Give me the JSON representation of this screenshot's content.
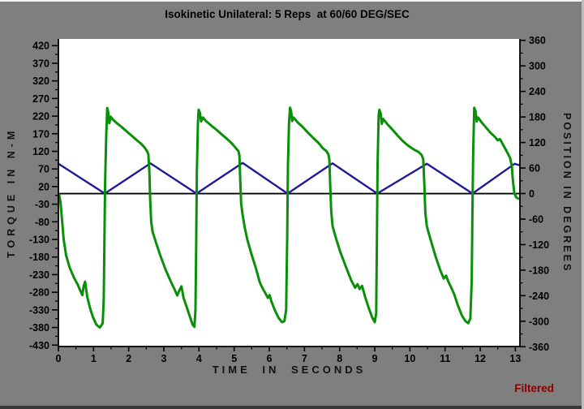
{
  "window": {
    "background_color": "#7f7f7f"
  },
  "footer": {
    "filtered_label": "Filtered",
    "filtered_color": "#8b0000"
  },
  "chart_data": {
    "type": "line",
    "title": "Isokinetic Unilateral: 5 Reps  at 60/60 DEG/SEC",
    "grid": false,
    "legend": "none",
    "zero_line": true,
    "plot_background": "#ffffff",
    "x_axis": {
      "label": "TIME IN SECONDS",
      "range": [
        0,
        13.13
      ],
      "major_ticks": [
        0,
        1,
        2,
        3,
        4,
        5,
        6,
        7,
        8,
        9,
        10,
        11,
        12,
        13
      ],
      "minor_step": 0.5
    },
    "y_axis_left": {
      "label": "TORQUE IN N-M",
      "range": [
        -434,
        439
      ],
      "major_ticks": [
        420,
        370,
        320,
        270,
        220,
        170,
        120,
        70,
        20,
        -30,
        -80,
        -130,
        -180,
        -230,
        -280,
        -330,
        -380,
        -430
      ],
      "minor_step": 25
    },
    "y_axis_right": {
      "label": "POSITION IN DEGREES",
      "range": [
        -359.5,
        363.3
      ],
      "major_ticks": [
        360,
        300,
        240,
        180,
        120,
        60,
        0,
        -60,
        -120,
        -180,
        -240,
        -300,
        -360
      ],
      "minor_step": 30
    },
    "series": [
      {
        "name": "position",
        "axis": "right",
        "color": "#1c1c99",
        "stroke_width": 2.4,
        "points": [
          [
            0,
            70
          ],
          [
            1.32,
            0
          ],
          [
            2.62,
            71
          ],
          [
            3.93,
            0
          ],
          [
            5.24,
            72
          ],
          [
            6.52,
            0
          ],
          [
            7.8,
            71
          ],
          [
            9.07,
            0
          ],
          [
            10.48,
            70
          ],
          [
            11.78,
            0
          ],
          [
            12.98,
            70
          ],
          [
            13.1,
            67
          ]
        ]
      },
      {
        "name": "torque",
        "axis": "left",
        "color": "#089008",
        "stroke_width": 3,
        "points": [
          [
            0.02,
            -3
          ],
          [
            0.06,
            -25
          ],
          [
            0.1,
            -70
          ],
          [
            0.15,
            -130
          ],
          [
            0.22,
            -175
          ],
          [
            0.32,
            -210
          ],
          [
            0.45,
            -240
          ],
          [
            0.55,
            -258
          ],
          [
            0.62,
            -275
          ],
          [
            0.68,
            -288
          ],
          [
            0.72,
            -262
          ],
          [
            0.76,
            -250
          ],
          [
            0.82,
            -292
          ],
          [
            0.9,
            -325
          ],
          [
            0.98,
            -350
          ],
          [
            1.08,
            -372
          ],
          [
            1.18,
            -380
          ],
          [
            1.26,
            -368
          ],
          [
            1.29,
            -300
          ],
          [
            1.31,
            -120
          ],
          [
            1.33,
            30
          ],
          [
            1.36,
            160
          ],
          [
            1.39,
            243
          ],
          [
            1.42,
            230
          ],
          [
            1.45,
            200
          ],
          [
            1.49,
            218
          ],
          [
            1.55,
            210
          ],
          [
            1.65,
            201
          ],
          [
            1.8,
            189
          ],
          [
            1.95,
            176
          ],
          [
            2.1,
            163
          ],
          [
            2.25,
            150
          ],
          [
            2.35,
            142
          ],
          [
            2.45,
            131
          ],
          [
            2.52,
            121
          ],
          [
            2.56,
            112
          ],
          [
            2.59,
            60
          ],
          [
            2.61,
            -15
          ],
          [
            2.64,
            -80
          ],
          [
            2.68,
            -108
          ],
          [
            2.78,
            -140
          ],
          [
            2.9,
            -176
          ],
          [
            3.05,
            -216
          ],
          [
            3.2,
            -250
          ],
          [
            3.3,
            -271
          ],
          [
            3.38,
            -289
          ],
          [
            3.44,
            -275
          ],
          [
            3.5,
            -263
          ],
          [
            3.56,
            -296
          ],
          [
            3.65,
            -322
          ],
          [
            3.75,
            -352
          ],
          [
            3.82,
            -372
          ],
          [
            3.87,
            -378
          ],
          [
            3.9,
            -330
          ],
          [
            3.92,
            -140
          ],
          [
            3.94,
            60
          ],
          [
            3.97,
            200
          ],
          [
            3.99,
            238
          ],
          [
            4.03,
            228
          ],
          [
            4.06,
            205
          ],
          [
            4.11,
            216
          ],
          [
            4.2,
            206
          ],
          [
            4.35,
            193
          ],
          [
            4.5,
            181
          ],
          [
            4.65,
            168
          ],
          [
            4.8,
            155
          ],
          [
            4.95,
            141
          ],
          [
            5.05,
            129
          ],
          [
            5.12,
            121
          ],
          [
            5.15,
            108
          ],
          [
            5.17,
            50
          ],
          [
            5.2,
            -28
          ],
          [
            5.24,
            -60
          ],
          [
            5.3,
            -96
          ],
          [
            5.38,
            -132
          ],
          [
            5.48,
            -168
          ],
          [
            5.62,
            -212
          ],
          [
            5.73,
            -252
          ],
          [
            5.81,
            -269
          ],
          [
            5.89,
            -283
          ],
          [
            5.96,
            -296
          ],
          [
            6.01,
            -288
          ],
          [
            6.06,
            -306
          ],
          [
            6.16,
            -331
          ],
          [
            6.26,
            -352
          ],
          [
            6.36,
            -365
          ],
          [
            6.43,
            -362
          ],
          [
            6.48,
            -330
          ],
          [
            6.51,
            -120
          ],
          [
            6.53,
            80
          ],
          [
            6.56,
            200
          ],
          [
            6.59,
            244
          ],
          [
            6.62,
            234
          ],
          [
            6.65,
            206
          ],
          [
            6.69,
            216
          ],
          [
            6.8,
            203
          ],
          [
            6.95,
            189
          ],
          [
            7.1,
            173
          ],
          [
            7.25,
            158
          ],
          [
            7.4,
            144
          ],
          [
            7.52,
            129
          ],
          [
            7.62,
            121
          ],
          [
            7.68,
            112
          ],
          [
            7.71,
            95
          ],
          [
            7.73,
            30
          ],
          [
            7.76,
            -48
          ],
          [
            7.8,
            -92
          ],
          [
            7.9,
            -128
          ],
          [
            8.02,
            -166
          ],
          [
            8.18,
            -208
          ],
          [
            8.33,
            -246
          ],
          [
            8.44,
            -267
          ],
          [
            8.51,
            -257
          ],
          [
            8.57,
            -271
          ],
          [
            8.64,
            -262
          ],
          [
            8.72,
            -291
          ],
          [
            8.82,
            -322
          ],
          [
            8.92,
            -350
          ],
          [
            9.0,
            -365
          ],
          [
            9.04,
            -340
          ],
          [
            9.06,
            -150
          ],
          [
            9.08,
            80
          ],
          [
            9.11,
            220
          ],
          [
            9.13,
            238
          ],
          [
            9.17,
            227
          ],
          [
            9.2,
            198
          ],
          [
            9.24,
            212
          ],
          [
            9.35,
            198
          ],
          [
            9.5,
            182
          ],
          [
            9.65,
            165
          ],
          [
            9.8,
            149
          ],
          [
            9.95,
            136
          ],
          [
            10.1,
            126
          ],
          [
            10.25,
            118
          ],
          [
            10.33,
            110
          ],
          [
            10.38,
            98
          ],
          [
            10.41,
            30
          ],
          [
            10.44,
            -55
          ],
          [
            10.48,
            -92
          ],
          [
            10.52,
            -107
          ],
          [
            10.62,
            -141
          ],
          [
            10.74,
            -181
          ],
          [
            10.86,
            -216
          ],
          [
            10.96,
            -241
          ],
          [
            11.03,
            -233
          ],
          [
            11.09,
            -249
          ],
          [
            11.16,
            -263
          ],
          [
            11.26,
            -286
          ],
          [
            11.36,
            -316
          ],
          [
            11.48,
            -346
          ],
          [
            11.58,
            -362
          ],
          [
            11.66,
            -368
          ],
          [
            11.72,
            -354
          ],
          [
            11.76,
            -245
          ],
          [
            11.78,
            -40
          ],
          [
            11.8,
            120
          ],
          [
            11.83,
            244
          ],
          [
            11.87,
            233
          ],
          [
            11.9,
            205
          ],
          [
            11.94,
            216
          ],
          [
            12.05,
            201
          ],
          [
            12.18,
            186
          ],
          [
            12.3,
            172
          ],
          [
            12.42,
            161
          ],
          [
            12.5,
            151
          ],
          [
            12.56,
            155
          ],
          [
            12.65,
            139
          ],
          [
            12.75,
            121
          ],
          [
            12.85,
            101
          ],
          [
            12.9,
            78
          ],
          [
            12.93,
            38
          ],
          [
            12.97,
            2
          ],
          [
            13.02,
            -10
          ],
          [
            13.08,
            -14
          ]
        ]
      }
    ]
  }
}
